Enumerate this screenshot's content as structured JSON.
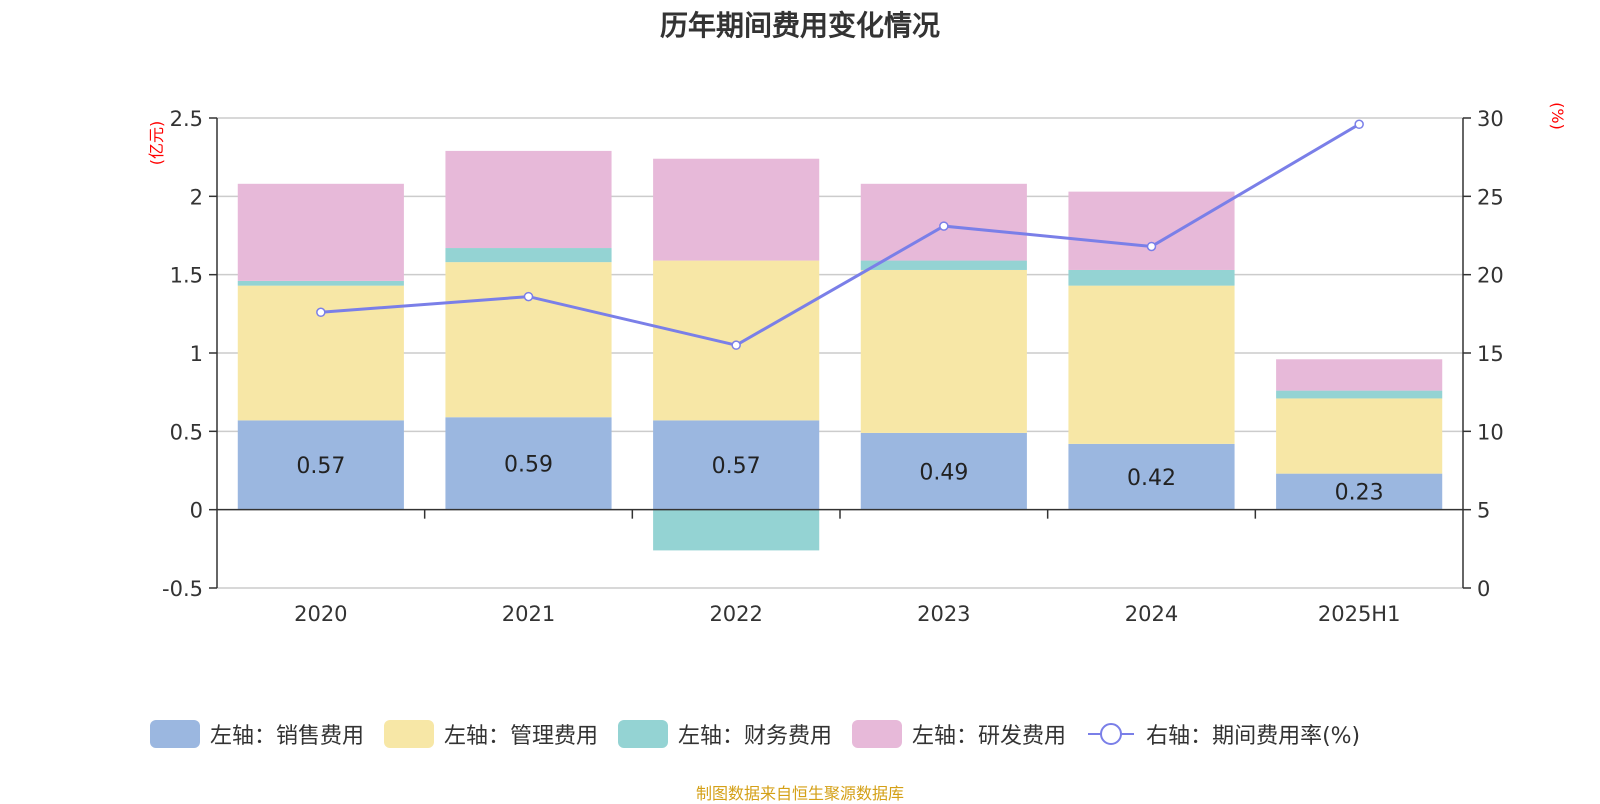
{
  "chart_data": {
    "type": "bar",
    "title": "历年期间费用变化情况",
    "categories": [
      "2020",
      "2021",
      "2022",
      "2023",
      "2024",
      "2025H1"
    ],
    "stacked": true,
    "left_axis": {
      "unit": "(亿元)",
      "ylim": [
        -0.5,
        2.5
      ],
      "ticks": [
        "-0.5",
        "0",
        "0.5",
        "1",
        "1.5",
        "2",
        "2.5"
      ]
    },
    "right_axis": {
      "unit": "(%)",
      "ylim": [
        0,
        30
      ],
      "ticks": [
        "0",
        "5",
        "10",
        "15",
        "20",
        "25",
        "30"
      ]
    },
    "series": [
      {
        "name": "左轴：销售费用",
        "axis": "left",
        "type": "bar",
        "color": "#9bb7e0",
        "values": [
          0.57,
          0.59,
          0.57,
          0.49,
          0.42,
          0.23
        ],
        "labels": [
          "0.57",
          "0.59",
          "0.57",
          "0.49",
          "0.42",
          "0.23"
        ]
      },
      {
        "name": "左轴：管理费用",
        "axis": "left",
        "type": "bar",
        "color": "#f7e7a6",
        "values": [
          0.86,
          0.99,
          1.02,
          1.04,
          1.01,
          0.48
        ]
      },
      {
        "name": "左轴：财务费用",
        "axis": "left",
        "type": "bar",
        "color": "#94d3d3",
        "values": [
          0.03,
          0.09,
          -0.26,
          0.06,
          0.1,
          0.05
        ]
      },
      {
        "name": "左轴：研发费用",
        "axis": "left",
        "type": "bar",
        "color": "#e7b9d9",
        "values": [
          0.62,
          0.62,
          0.65,
          0.49,
          0.5,
          0.2
        ]
      },
      {
        "name": "右轴：期间费用率(%)",
        "axis": "right",
        "type": "line",
        "color": "#7a7fe8",
        "values": [
          17.6,
          18.6,
          15.5,
          23.1,
          21.8,
          29.6
        ]
      }
    ],
    "grid": true,
    "legend": "bottom"
  },
  "footer": {
    "source": "制图数据来自恒生聚源数据库"
  }
}
